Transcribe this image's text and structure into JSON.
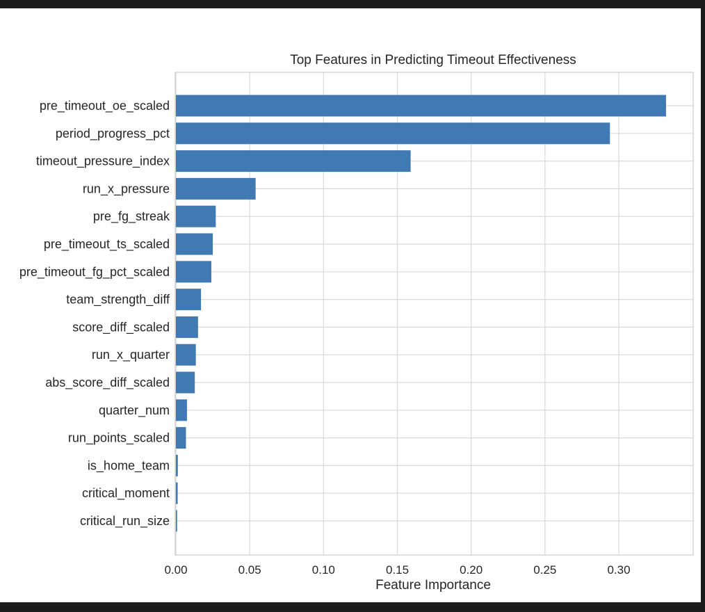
{
  "chart_data": {
    "type": "bar",
    "orientation": "horizontal",
    "title": "Top Features in Predicting Timeout Effectiveness",
    "xlabel": "Feature Importance",
    "ylabel": "",
    "xlim": [
      0,
      0.35
    ],
    "xticks": [
      "0.00",
      "0.05",
      "0.10",
      "0.15",
      "0.20",
      "0.25",
      "0.30"
    ],
    "grid": true,
    "bar_color": "#4179b3",
    "categories": [
      "pre_timeout_oe_scaled",
      "period_progress_pct",
      "timeout_pressure_index",
      "run_x_pressure",
      "pre_fg_streak",
      "pre_timeout_ts_scaled",
      "pre_timeout_fg_pct_scaled",
      "team_strength_diff",
      "score_diff_scaled",
      "run_x_quarter",
      "abs_score_diff_scaled",
      "quarter_num",
      "run_points_scaled",
      "is_home_team",
      "critical_moment",
      "critical_run_size"
    ],
    "values": [
      0.332,
      0.294,
      0.159,
      0.054,
      0.027,
      0.025,
      0.024,
      0.017,
      0.015,
      0.0135,
      0.0128,
      0.0075,
      0.0068,
      0.0013,
      0.0012,
      0.0008
    ]
  }
}
